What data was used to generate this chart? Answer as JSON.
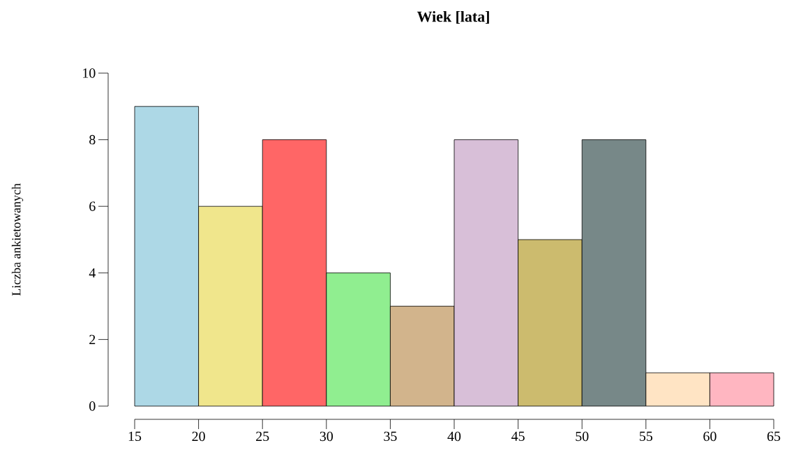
{
  "chart_data": {
    "type": "histogram",
    "title": "Wiek [lata]",
    "ylabel": "Liczba ankietowanych",
    "bins": [
      15,
      20,
      25,
      30,
      35,
      40,
      45,
      50,
      55,
      60,
      65
    ],
    "values": [
      9,
      6,
      8,
      4,
      3,
      8,
      5,
      8,
      1,
      1
    ],
    "colors": [
      "#add8e6",
      "#f0e68c",
      "#ff6666",
      "#90ee90",
      "#d2b48c",
      "#d8bfd8",
      "#ccbb6e",
      "#778888",
      "#ffe4c4",
      "#ffb6c1"
    ],
    "xlim": [
      15,
      65
    ],
    "ylim": [
      0,
      10
    ],
    "xticks": [
      15,
      20,
      25,
      30,
      35,
      40,
      45,
      50,
      55,
      60,
      65
    ],
    "yticks": [
      0,
      2,
      4,
      6,
      8,
      10
    ],
    "grid": false
  }
}
